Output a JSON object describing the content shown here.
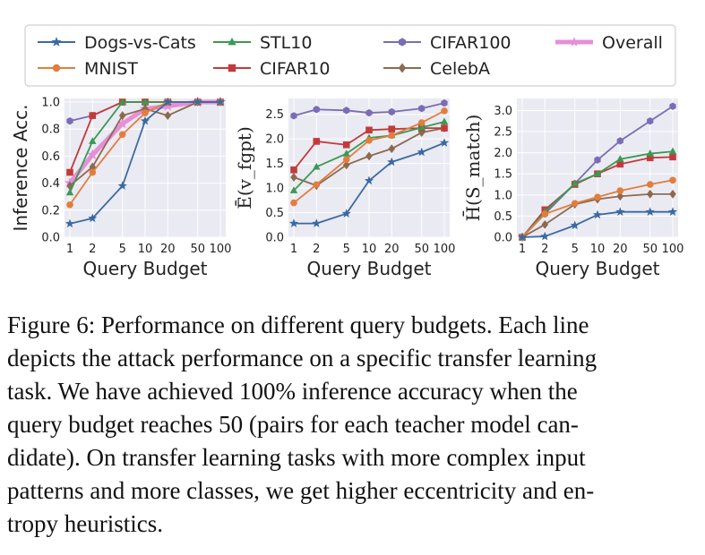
{
  "legend": {
    "items": [
      {
        "key": "dogs",
        "label": "Dogs-vs-Cats",
        "color": "#3a6aa3",
        "marker": "star"
      },
      {
        "key": "stl",
        "label": "STL10",
        "color": "#3a9a52",
        "marker": "triangle"
      },
      {
        "key": "c100",
        "label": "CIFAR100",
        "color": "#7a6cb6",
        "marker": "hexagon"
      },
      {
        "key": "overall",
        "label": "Overall",
        "color": "#e68fd8",
        "marker": "star"
      },
      {
        "key": "mnist",
        "label": "MNIST",
        "color": "#e27d3e",
        "marker": "circle"
      },
      {
        "key": "c10",
        "label": "CIFAR10",
        "color": "#c23b3b",
        "marker": "square"
      },
      {
        "key": "celeba",
        "label": "CelebA",
        "color": "#8c6a50",
        "marker": "diamond"
      }
    ]
  },
  "chart_data": [
    {
      "type": "line",
      "ylabel": "Inference Acc.",
      "xlabel": "Query Budget",
      "x": [
        1,
        2,
        5,
        10,
        20,
        50,
        100
      ],
      "x_ticks": [
        "1",
        "2",
        "5",
        "10",
        "20",
        "50",
        "100"
      ],
      "xscale": "log",
      "ylim": [
        0,
        1.0
      ],
      "y_ticks": [
        "0.0",
        "0.2",
        "0.4",
        "0.6",
        "0.8",
        "1.0"
      ],
      "series": [
        {
          "key": "dogs",
          "name": "Dogs-vs-Cats",
          "values": [
            0.1,
            0.14,
            0.38,
            0.86,
            1.0,
            1.0,
            1.0
          ]
        },
        {
          "key": "mnist",
          "name": "MNIST",
          "values": [
            0.24,
            0.48,
            0.76,
            0.92,
            1.0,
            1.0,
            1.0
          ]
        },
        {
          "key": "stl",
          "name": "STL10",
          "values": [
            0.33,
            0.71,
            1.0,
            1.0,
            1.0,
            1.0,
            1.0
          ]
        },
        {
          "key": "c10",
          "name": "CIFAR10",
          "values": [
            0.48,
            0.9,
            1.0,
            1.0,
            1.0,
            1.0,
            1.0
          ]
        },
        {
          "key": "c100",
          "name": "CIFAR100",
          "values": [
            0.86,
            0.9,
            1.0,
            1.0,
            1.0,
            1.0,
            1.0
          ]
        },
        {
          "key": "celeba",
          "name": "CelebA",
          "values": [
            0.38,
            0.52,
            0.9,
            0.95,
            0.9,
            1.0,
            1.0
          ]
        },
        {
          "key": "overall",
          "name": "Overall",
          "values": [
            0.4,
            0.61,
            0.84,
            0.95,
            0.97,
            1.0,
            1.0
          ]
        }
      ]
    },
    {
      "type": "line",
      "ylabel": "Ē(v_fgpt)",
      "xlabel": "Query Budget",
      "x": [
        1,
        2,
        5,
        10,
        20,
        50,
        100
      ],
      "x_ticks": [
        "1",
        "2",
        "5",
        "10",
        "20",
        "50",
        "100"
      ],
      "xscale": "log",
      "ylim": [
        0,
        2.75
      ],
      "y_ticks": [
        "0.0",
        "0.5",
        "1.0",
        "1.5",
        "2.0",
        "2.5"
      ],
      "series": [
        {
          "key": "dogs",
          "name": "Dogs-vs-Cats",
          "values": [
            0.28,
            0.28,
            0.48,
            1.15,
            1.53,
            1.73,
            1.92
          ]
        },
        {
          "key": "mnist",
          "name": "MNIST",
          "values": [
            0.7,
            1.07,
            1.58,
            1.97,
            2.07,
            2.33,
            2.57
          ]
        },
        {
          "key": "stl",
          "name": "STL10",
          "values": [
            0.95,
            1.43,
            1.7,
            2.02,
            2.07,
            2.23,
            2.35
          ]
        },
        {
          "key": "c10",
          "name": "CIFAR10",
          "values": [
            1.37,
            1.95,
            1.88,
            2.18,
            2.2,
            2.22,
            2.22
          ]
        },
        {
          "key": "c100",
          "name": "CIFAR100",
          "values": [
            2.47,
            2.6,
            2.58,
            2.53,
            2.55,
            2.62,
            2.73
          ]
        },
        {
          "key": "celeba",
          "name": "CelebA",
          "values": [
            1.22,
            1.05,
            1.47,
            1.65,
            1.8,
            2.13,
            2.22
          ]
        }
      ]
    },
    {
      "type": "line",
      "ylabel": "H̄(S_match)",
      "xlabel": "Query Budget",
      "x": [
        1,
        2,
        5,
        10,
        20,
        50,
        100
      ],
      "x_ticks": [
        "1",
        "2",
        "5",
        "10",
        "20",
        "50",
        "100"
      ],
      "xscale": "log",
      "ylim": [
        0,
        3.2
      ],
      "y_ticks": [
        "0.0",
        "0.5",
        "1.0",
        "1.5",
        "2.0",
        "2.5",
        "3.0"
      ],
      "series": [
        {
          "key": "dogs",
          "name": "Dogs-vs-Cats",
          "values": [
            0.0,
            0.02,
            0.28,
            0.53,
            0.6,
            0.6,
            0.6
          ]
        },
        {
          "key": "mnist",
          "name": "MNIST",
          "values": [
            0.0,
            0.55,
            0.8,
            0.95,
            1.1,
            1.25,
            1.35
          ]
        },
        {
          "key": "stl",
          "name": "STL10",
          "values": [
            0.0,
            0.6,
            1.27,
            1.5,
            1.85,
            1.98,
            2.03
          ]
        },
        {
          "key": "c10",
          "name": "CIFAR10",
          "values": [
            0.0,
            0.65,
            1.25,
            1.5,
            1.73,
            1.88,
            1.9
          ]
        },
        {
          "key": "c100",
          "name": "CIFAR100",
          "values": [
            0.0,
            0.55,
            1.27,
            1.83,
            2.28,
            2.75,
            3.1
          ]
        },
        {
          "key": "celeba",
          "name": "CelebA",
          "values": [
            0.0,
            0.3,
            0.78,
            0.9,
            0.97,
            1.02,
            1.02
          ]
        }
      ]
    }
  ],
  "caption": {
    "lines": [
      "Figure 6: Performance on different query budgets. Each line",
      "depicts the attack performance on a specific transfer learning",
      "task. We have achieved 100% inference accuracy when the",
      "query budget reaches 50 (pairs for each teacher model can-",
      "didate). On transfer learning tasks with more complex input",
      "patterns and more classes, we get higher eccentricity and en-",
      "tropy heuristics."
    ]
  }
}
